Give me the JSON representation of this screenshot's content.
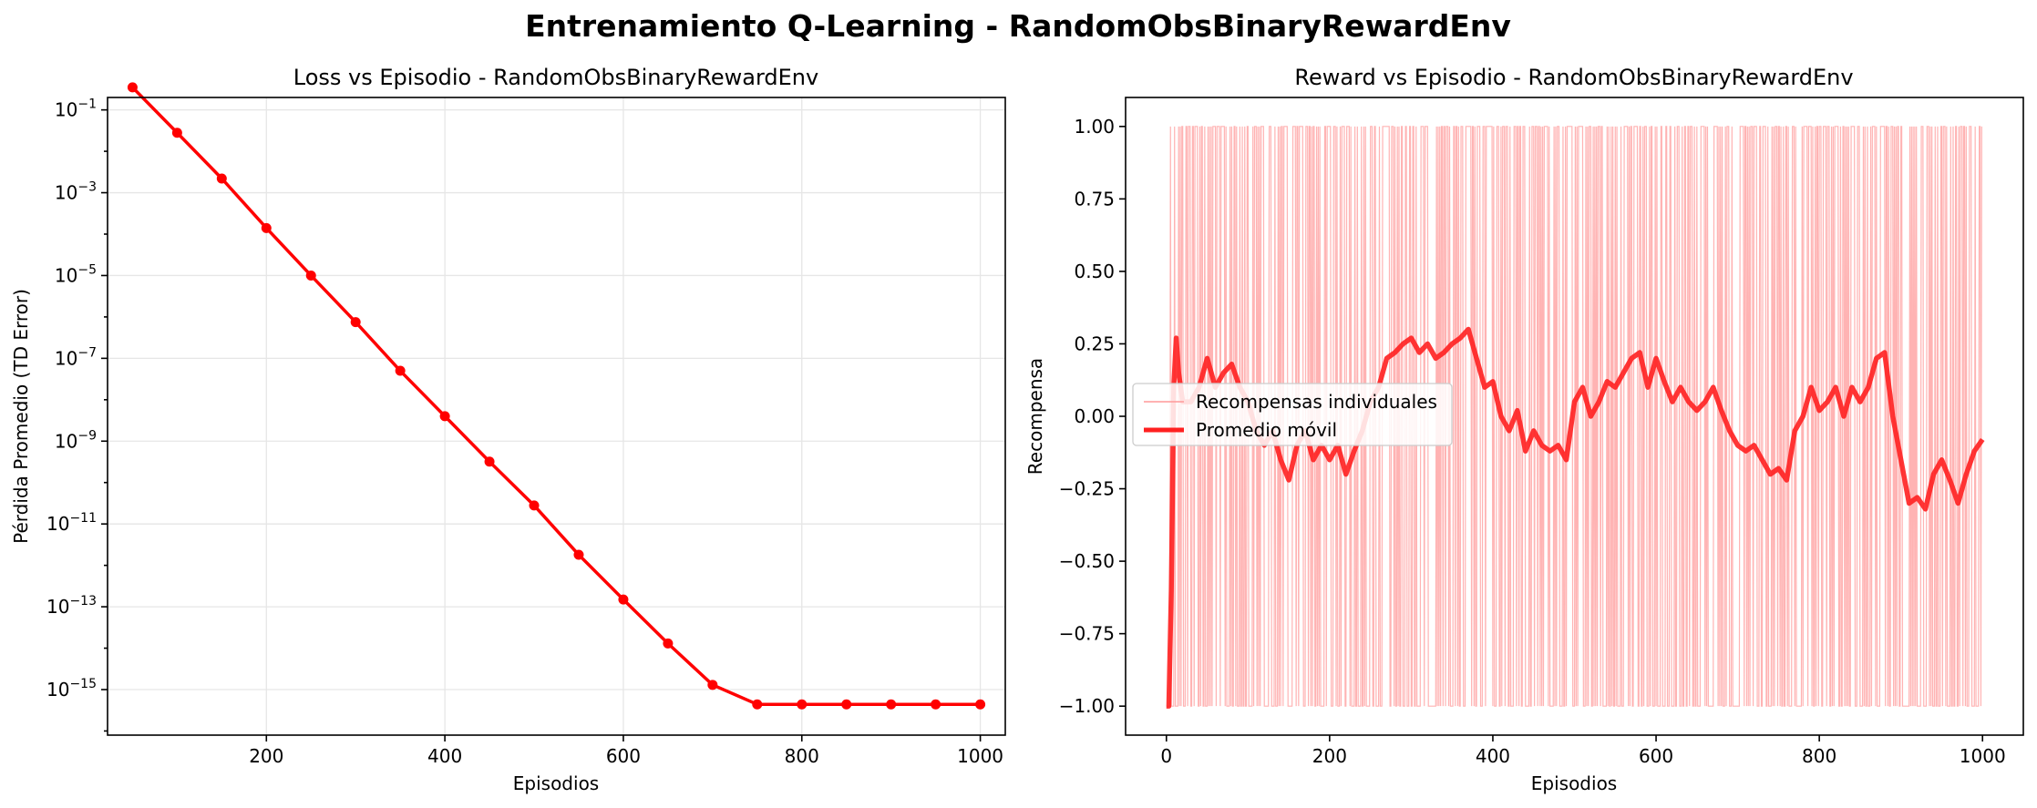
{
  "figure_title": "Entrenamiento Q-Learning - RandomObsBinaryRewardEnv",
  "colors": {
    "loss_line": "#ff0000",
    "reward_raw": "#ff9999",
    "reward_avg": "#ff2020",
    "grid": "#e6e6e6"
  },
  "chart_data": [
    {
      "type": "line",
      "title": "Loss vs Episodio - RandomObsBinaryRewardEnv",
      "xlabel": "Episodios",
      "ylabel": "Pérdida Promedio (TD Error)",
      "yscale": "log",
      "grid": true,
      "xlim": [
        22,
        1028
      ],
      "ylim_exp": [
        -16.1,
        -0.7
      ],
      "xticks": [
        200,
        400,
        600,
        800,
        1000
      ],
      "ytick_exponents": [
        -1,
        -3,
        -5,
        -7,
        -9,
        -11,
        -13,
        -15
      ],
      "x": [
        50,
        100,
        150,
        200,
        250,
        300,
        350,
        400,
        450,
        500,
        550,
        600,
        650,
        700,
        750,
        800,
        850,
        900,
        950,
        1000
      ],
      "y": [
        0.35,
        0.028,
        0.0022,
        0.00014,
        1e-05,
        7.5e-07,
        5e-08,
        4e-09,
        3.2e-10,
        2.8e-11,
        1.8e-12,
        1.5e-13,
        1.3e-14,
        1.3e-15,
        4.4e-16,
        4.4e-16,
        4.4e-16,
        4.4e-16,
        4.4e-16,
        4.4e-16
      ],
      "series": [
        {
          "name": "",
          "color": "#ff0000"
        }
      ]
    },
    {
      "type": "line",
      "title": "Reward vs Episodio - RandomObsBinaryRewardEnv",
      "xlabel": "Episodios",
      "ylabel": "Recompensa",
      "grid": false,
      "xlim": [
        -50,
        1050
      ],
      "ylim": [
        -1.1,
        1.1
      ],
      "xticks": [
        0,
        200,
        400,
        600,
        800,
        1000
      ],
      "yticks": [
        "1.00",
        "0.75",
        "0.50",
        "0.25",
        "0.00",
        "−0.25",
        "−0.50",
        "−0.75",
        "−1.00"
      ],
      "ytick_values": [
        1.0,
        0.75,
        0.5,
        0.25,
        0.0,
        -0.25,
        -0.5,
        -0.75,
        -1.0
      ],
      "legend": {
        "position": "center-left",
        "entries": [
          "Recompensas individuales",
          "Promedio móvil"
        ]
      },
      "raw_rewards": {
        "episodes": 1000,
        "values": [
          -1,
          1
        ]
      },
      "moving_average": {
        "x": [
          0,
          3,
          6,
          9,
          12,
          15,
          20,
          30,
          40,
          50,
          60,
          70,
          80,
          90,
          100,
          110,
          120,
          130,
          140,
          150,
          160,
          170,
          180,
          190,
          200,
          210,
          220,
          230,
          240,
          250,
          260,
          270,
          280,
          290,
          300,
          310,
          320,
          330,
          340,
          350,
          360,
          370,
          380,
          390,
          400,
          410,
          420,
          430,
          440,
          450,
          460,
          470,
          480,
          490,
          500,
          510,
          520,
          530,
          540,
          550,
          560,
          570,
          580,
          590,
          600,
          610,
          620,
          630,
          640,
          650,
          660,
          670,
          680,
          690,
          700,
          710,
          720,
          730,
          740,
          750,
          760,
          770,
          780,
          790,
          800,
          810,
          820,
          830,
          840,
          850,
          860,
          870,
          880,
          890,
          900,
          910,
          920,
          930,
          940,
          950,
          960,
          970,
          980,
          990,
          1000
        ],
        "y": [
          -1.0,
          -1.0,
          -0.6,
          0.1,
          0.27,
          0.15,
          0.05,
          0.05,
          0.1,
          0.2,
          0.1,
          0.15,
          0.18,
          0.1,
          0.05,
          -0.05,
          -0.1,
          -0.05,
          -0.15,
          -0.22,
          -0.1,
          -0.05,
          -0.15,
          -0.1,
          -0.15,
          -0.1,
          -0.2,
          -0.12,
          -0.05,
          0.05,
          0.1,
          0.2,
          0.22,
          0.25,
          0.27,
          0.22,
          0.25,
          0.2,
          0.22,
          0.25,
          0.27,
          0.3,
          0.2,
          0.1,
          0.12,
          0.0,
          -0.05,
          0.02,
          -0.12,
          -0.05,
          -0.1,
          -0.12,
          -0.1,
          -0.15,
          0.05,
          0.1,
          0.0,
          0.05,
          0.12,
          0.1,
          0.15,
          0.2,
          0.22,
          0.1,
          0.2,
          0.12,
          0.05,
          0.1,
          0.05,
          0.02,
          0.05,
          0.1,
          0.02,
          -0.05,
          -0.1,
          -0.12,
          -0.1,
          -0.15,
          -0.2,
          -0.18,
          -0.22,
          -0.05,
          0.0,
          0.1,
          0.02,
          0.05,
          0.1,
          0.0,
          0.1,
          0.05,
          0.1,
          0.2,
          0.22,
          0.0,
          -0.15,
          -0.3,
          -0.28,
          -0.32,
          -0.2,
          -0.15,
          -0.22,
          -0.3,
          -0.2,
          -0.12,
          -0.08
        ],
        "color": "#ff2020"
      }
    }
  ]
}
